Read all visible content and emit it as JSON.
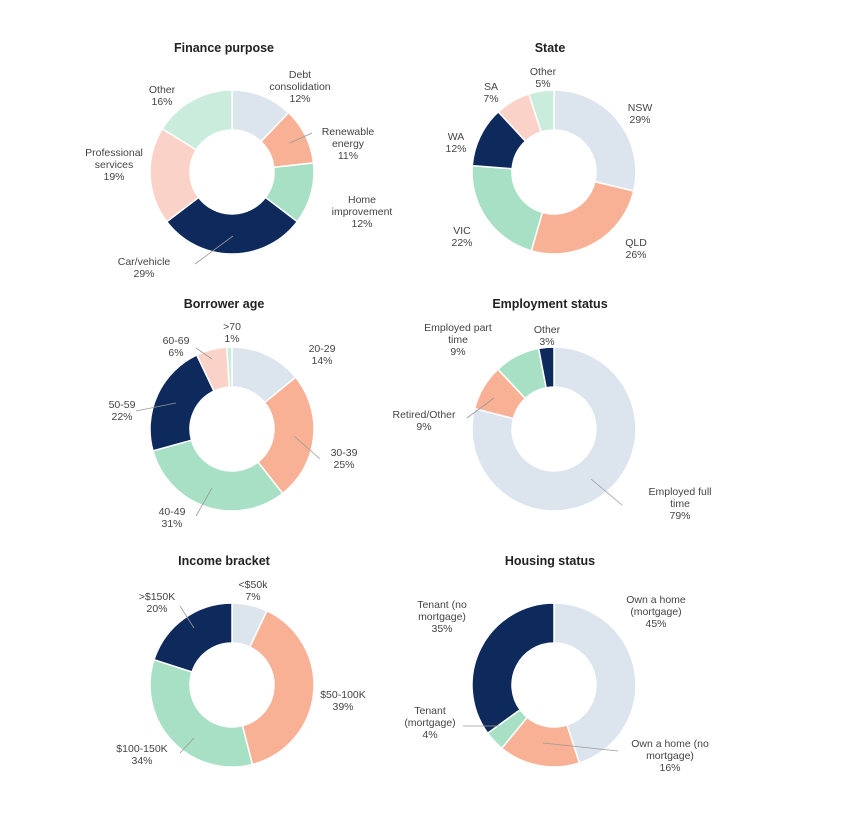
{
  "colors": {
    "light_blue": "#dce4ee",
    "salmon": "#f9b196",
    "mint": "#a8e0c6",
    "navy": "#0e2a5c",
    "light_pink": "#fbd2c8",
    "light_mint": "#c9ecdd"
  },
  "chart_data": [
    {
      "type": "pie",
      "variant": "donut",
      "title": "Finance purpose",
      "slices": [
        {
          "label": [
            "Debt",
            "consolidation"
          ],
          "value": 12,
          "value_text": "12%",
          "color": "#dce4ee"
        },
        {
          "label": [
            "Renewable",
            "energy"
          ],
          "value": 11,
          "value_text": "11%",
          "color": "#f9b196"
        },
        {
          "label": [
            "Home",
            "improvement"
          ],
          "value": 12,
          "value_text": "12%",
          "color": "#a8e0c6"
        },
        {
          "label": [
            "Car/vehicle"
          ],
          "value": 29,
          "value_text": "29%",
          "color": "#0e2a5c"
        },
        {
          "label": [
            "Professional",
            "services"
          ],
          "value": 19,
          "value_text": "19%",
          "color": "#fbd2c8"
        },
        {
          "label": [
            "Other"
          ],
          "value": 16,
          "value_text": "16%",
          "color": "#c9ecdd"
        }
      ]
    },
    {
      "type": "pie",
      "variant": "donut",
      "title": "State",
      "slices": [
        {
          "label": [
            "NSW"
          ],
          "value": 29,
          "value_text": "29%",
          "color": "#dce4ee"
        },
        {
          "label": [
            "QLD"
          ],
          "value": 26,
          "value_text": "26%",
          "color": "#f9b196"
        },
        {
          "label": [
            "VIC"
          ],
          "value": 22,
          "value_text": "22%",
          "color": "#a8e0c6"
        },
        {
          "label": [
            "WA"
          ],
          "value": 12,
          "value_text": "12%",
          "color": "#0e2a5c"
        },
        {
          "label": [
            "SA"
          ],
          "value": 7,
          "value_text": "7%",
          "color": "#fbd2c8"
        },
        {
          "label": [
            "Other"
          ],
          "value": 5,
          "value_text": "5%",
          "color": "#c9ecdd"
        }
      ]
    },
    {
      "type": "pie",
      "variant": "donut",
      "title": "Borrower age",
      "slices": [
        {
          "label": [
            "20-29"
          ],
          "value": 14,
          "value_text": "14%",
          "color": "#dce4ee"
        },
        {
          "label": [
            "30-39"
          ],
          "value": 25,
          "value_text": "25%",
          "color": "#f9b196"
        },
        {
          "label": [
            "40-49"
          ],
          "value": 31,
          "value_text": "31%",
          "color": "#a8e0c6"
        },
        {
          "label": [
            "50-59"
          ],
          "value": 22,
          "value_text": "22%",
          "color": "#0e2a5c"
        },
        {
          "label": [
            "60-69"
          ],
          "value": 6,
          "value_text": "6%",
          "color": "#fbd2c8"
        },
        {
          "label": [
            ">70"
          ],
          "value": 1,
          "value_text": "1%",
          "color": "#c9ecdd"
        }
      ]
    },
    {
      "type": "pie",
      "variant": "donut",
      "title": "Employment status",
      "slices": [
        {
          "label": [
            "Employed full",
            "time"
          ],
          "value": 79,
          "value_text": "79%",
          "color": "#dce4ee"
        },
        {
          "label": [
            "Retired/Other"
          ],
          "value": 9,
          "value_text": "9%",
          "color": "#f9b196"
        },
        {
          "label": [
            "Employed part",
            "time"
          ],
          "value": 9,
          "value_text": "9%",
          "color": "#a8e0c6"
        },
        {
          "label": [
            "Other"
          ],
          "value": 3,
          "value_text": "3%",
          "color": "#0e2a5c"
        }
      ]
    },
    {
      "type": "pie",
      "variant": "donut",
      "title": "Income bracket",
      "slices": [
        {
          "label": [
            "<$50k"
          ],
          "value": 7,
          "value_text": "7%",
          "color": "#dce4ee"
        },
        {
          "label": [
            "$50-100K"
          ],
          "value": 39,
          "value_text": "39%",
          "color": "#f9b196"
        },
        {
          "label": [
            "$100-150K"
          ],
          "value": 34,
          "value_text": "34%",
          "color": "#a8e0c6"
        },
        {
          "label": [
            ">$150K"
          ],
          "value": 20,
          "value_text": "20%",
          "color": "#0e2a5c"
        }
      ]
    },
    {
      "type": "pie",
      "variant": "donut",
      "title": "Housing status",
      "slices": [
        {
          "label": [
            "Own a home",
            "(mortgage)"
          ],
          "value": 45,
          "value_text": "45%",
          "color": "#dce4ee"
        },
        {
          "label": [
            "Own a home (no",
            "mortgage)"
          ],
          "value": 16,
          "value_text": "16%",
          "color": "#f9b196"
        },
        {
          "label": [
            "Tenant",
            "(mortgage)"
          ],
          "value": 4,
          "value_text": "4%",
          "color": "#a8e0c6"
        },
        {
          "label": [
            "Tenant (no",
            "mortgage)"
          ],
          "value": 35,
          "value_text": "35%",
          "color": "#0e2a5c"
        }
      ]
    }
  ]
}
